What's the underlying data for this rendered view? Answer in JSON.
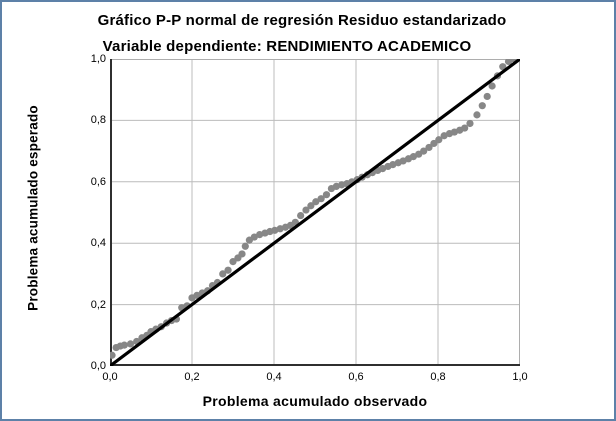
{
  "window": {
    "border_color": "#5d81a8",
    "background_color": "#ffffff"
  },
  "header": {
    "title": "Gráfico P-P normal de regresión Residuo estandarizado",
    "subtitle": "Variable dependiente: RENDIMIENTO ACADEMICO"
  },
  "chart_data": {
    "type": "scatter",
    "title": "Gráfico P-P normal de regresión Residuo estandarizado",
    "subtitle": "Variable dependiente: RENDIMIENTO ACADEMICO",
    "xlabel": "Problema acumulado observado",
    "ylabel": "Problema acumulado esperado",
    "xlim": [
      0,
      1
    ],
    "ylim": [
      0,
      1
    ],
    "x_tick_labels": [
      "0,0",
      "0,2",
      "0,4",
      "0,6",
      "0,8",
      "1,0"
    ],
    "y_tick_labels": [
      "0,0",
      "0,2",
      "0,4",
      "0,6",
      "0,8",
      "1,0"
    ],
    "tick_values": [
      0,
      0.2,
      0.4,
      0.6,
      0.8,
      1.0
    ],
    "grid": true,
    "legend": "none",
    "reference_line": {
      "from": [
        0,
        0
      ],
      "to": [
        1,
        1
      ]
    },
    "colors": {
      "point": "#878787",
      "reference_line": "#000000",
      "gridline": "#bcbcbc",
      "axis_frame_light": "#adadad",
      "axis_frame_dark": "#2f2f2f"
    },
    "series": [
      {
        "name": "Residuo estandarizado",
        "points": [
          [
            0.005,
            0.035
          ],
          [
            0.015,
            0.06
          ],
          [
            0.025,
            0.065
          ],
          [
            0.035,
            0.068
          ],
          [
            0.05,
            0.072
          ],
          [
            0.065,
            0.08
          ],
          [
            0.078,
            0.092
          ],
          [
            0.09,
            0.1
          ],
          [
            0.1,
            0.112
          ],
          [
            0.112,
            0.12
          ],
          [
            0.125,
            0.128
          ],
          [
            0.138,
            0.14
          ],
          [
            0.15,
            0.148
          ],
          [
            0.162,
            0.153
          ],
          [
            0.175,
            0.19
          ],
          [
            0.188,
            0.196
          ],
          [
            0.2,
            0.222
          ],
          [
            0.212,
            0.23
          ],
          [
            0.225,
            0.238
          ],
          [
            0.238,
            0.245
          ],
          [
            0.25,
            0.262
          ],
          [
            0.262,
            0.272
          ],
          [
            0.275,
            0.3
          ],
          [
            0.288,
            0.312
          ],
          [
            0.3,
            0.34
          ],
          [
            0.312,
            0.352
          ],
          [
            0.322,
            0.365
          ],
          [
            0.33,
            0.39
          ],
          [
            0.34,
            0.41
          ],
          [
            0.352,
            0.42
          ],
          [
            0.365,
            0.428
          ],
          [
            0.378,
            0.433
          ],
          [
            0.39,
            0.438
          ],
          [
            0.402,
            0.442
          ],
          [
            0.415,
            0.447
          ],
          [
            0.428,
            0.452
          ],
          [
            0.44,
            0.458
          ],
          [
            0.452,
            0.468
          ],
          [
            0.465,
            0.49
          ],
          [
            0.478,
            0.508
          ],
          [
            0.49,
            0.522
          ],
          [
            0.502,
            0.535
          ],
          [
            0.515,
            0.545
          ],
          [
            0.528,
            0.558
          ],
          [
            0.54,
            0.578
          ],
          [
            0.552,
            0.585
          ],
          [
            0.565,
            0.59
          ],
          [
            0.578,
            0.594
          ],
          [
            0.59,
            0.6
          ],
          [
            0.603,
            0.607
          ],
          [
            0.615,
            0.615
          ],
          [
            0.628,
            0.623
          ],
          [
            0.64,
            0.63
          ],
          [
            0.653,
            0.637
          ],
          [
            0.665,
            0.643
          ],
          [
            0.678,
            0.65
          ],
          [
            0.69,
            0.656
          ],
          [
            0.703,
            0.662
          ],
          [
            0.715,
            0.668
          ],
          [
            0.728,
            0.675
          ],
          [
            0.74,
            0.682
          ],
          [
            0.753,
            0.69
          ],
          [
            0.765,
            0.7
          ],
          [
            0.778,
            0.712
          ],
          [
            0.79,
            0.725
          ],
          [
            0.802,
            0.737
          ],
          [
            0.815,
            0.75
          ],
          [
            0.828,
            0.757
          ],
          [
            0.84,
            0.762
          ],
          [
            0.853,
            0.768
          ],
          [
            0.865,
            0.775
          ],
          [
            0.878,
            0.79
          ],
          [
            0.895,
            0.818
          ],
          [
            0.908,
            0.848
          ],
          [
            0.92,
            0.878
          ],
          [
            0.932,
            0.912
          ],
          [
            0.945,
            0.945
          ],
          [
            0.958,
            0.975
          ],
          [
            0.972,
            0.992
          ],
          [
            0.985,
            1.0
          ]
        ]
      }
    ]
  }
}
